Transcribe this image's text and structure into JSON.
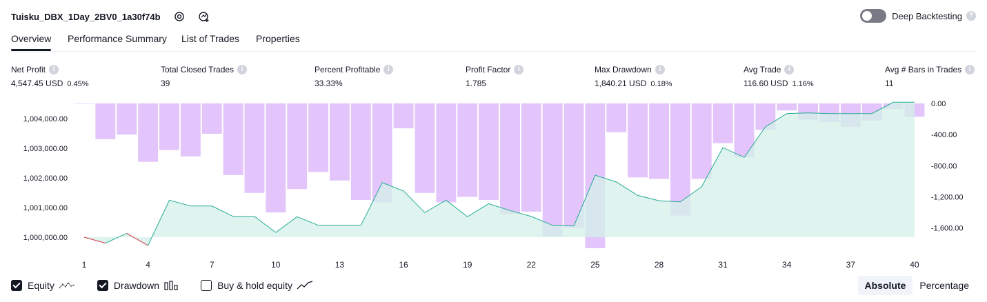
{
  "header": {
    "title": "Tuisku_DBX_1Day_2BV0_1a30f74b",
    "deep_backtesting": "Deep Backtesting"
  },
  "tabs": [
    "Overview",
    "Performance Summary",
    "List of Trades",
    "Properties"
  ],
  "metrics": [
    {
      "label": "Net Profit",
      "value": "4,547.45 USD",
      "pct": "0.45%",
      "color": "#089981"
    },
    {
      "label": "Total Closed Trades",
      "value": "39",
      "pct": "",
      "color": "#131722"
    },
    {
      "label": "Percent Profitable",
      "value": "33.33%",
      "pct": "",
      "color": "#089981"
    },
    {
      "label": "Profit Factor",
      "value": "1.785",
      "pct": "",
      "color": "#089981"
    },
    {
      "label": "Max Drawdown",
      "value": "1,840.21 USD",
      "pct": "0.18%",
      "color": "#f23645"
    },
    {
      "label": "Avg Trade",
      "value": "116.60 USD",
      "pct": "1.16%",
      "color": "#089981"
    },
    {
      "label": "Avg # Bars in Trades",
      "value": "11",
      "pct": "",
      "color": "#131722"
    }
  ],
  "legend": {
    "equity": "Equity",
    "drawdown": "Drawdown",
    "buy_hold": "Buy & hold equity"
  },
  "scale_toggle": {
    "absolute": "Absolute",
    "percentage": "Percentage"
  },
  "colors": {
    "equity_line": "#22ab94",
    "equity_fill": "#d4f0e8",
    "drawdown_bar": "#e1bffb",
    "loss": "#f23645"
  },
  "chart_data": {
    "type": "area",
    "x_ticks": [
      "1",
      "4",
      "7",
      "10",
      "13",
      "16",
      "19",
      "22",
      "25",
      "28",
      "31",
      "34",
      "37",
      "40"
    ],
    "left_axis": {
      "ticks": [
        "1,000,000.00",
        "1,001,000.00",
        "1,002,000.00",
        "1,003,000.00",
        "1,004,000.00"
      ],
      "ylim": [
        999600,
        1004600
      ]
    },
    "right_axis": {
      "ticks": [
        "0.00",
        "-400.00",
        "-800.00",
        "-1,200.00",
        "-1,600.00"
      ],
      "ylim": [
        -1860,
        0
      ]
    },
    "trade_numbers": [
      1,
      2,
      3,
      4,
      5,
      6,
      7,
      8,
      9,
      10,
      11,
      12,
      13,
      14,
      15,
      16,
      17,
      18,
      19,
      20,
      21,
      22,
      23,
      24,
      25,
      26,
      27,
      28,
      29,
      30,
      31,
      32,
      33,
      34,
      35,
      36,
      37,
      38,
      39,
      40
    ],
    "equity": [
      1000000,
      999800,
      1000130,
      999720,
      1001250,
      1001050,
      1001050,
      1000700,
      1000700,
      1000160,
      1000690,
      1000400,
      1000400,
      1000400,
      1001840,
      1001560,
      1000830,
      1001250,
      1000690,
      1001130,
      1000900,
      1000700,
      1000400,
      1000380,
      1002090,
      1001860,
      1001410,
      1001230,
      1001190,
      1001700,
      1003020,
      1002690,
      1003720,
      1004170,
      1004190,
      1004170,
      1004170,
      1004170,
      1004550,
      1004550
    ],
    "drawdown": [
      0,
      -460,
      -400,
      -750,
      -600,
      -680,
      -390,
      -920,
      -1150,
      -1400,
      -1100,
      -880,
      -990,
      -1240,
      -1270,
      -320,
      -1150,
      -1270,
      -1200,
      -1240,
      -1420,
      -1390,
      -1710,
      -1600,
      -1860,
      -370,
      -950,
      -970,
      -1440,
      -970,
      -510,
      -690,
      -340,
      -90,
      -210,
      -240,
      -300,
      -220,
      -70,
      -170
    ]
  }
}
